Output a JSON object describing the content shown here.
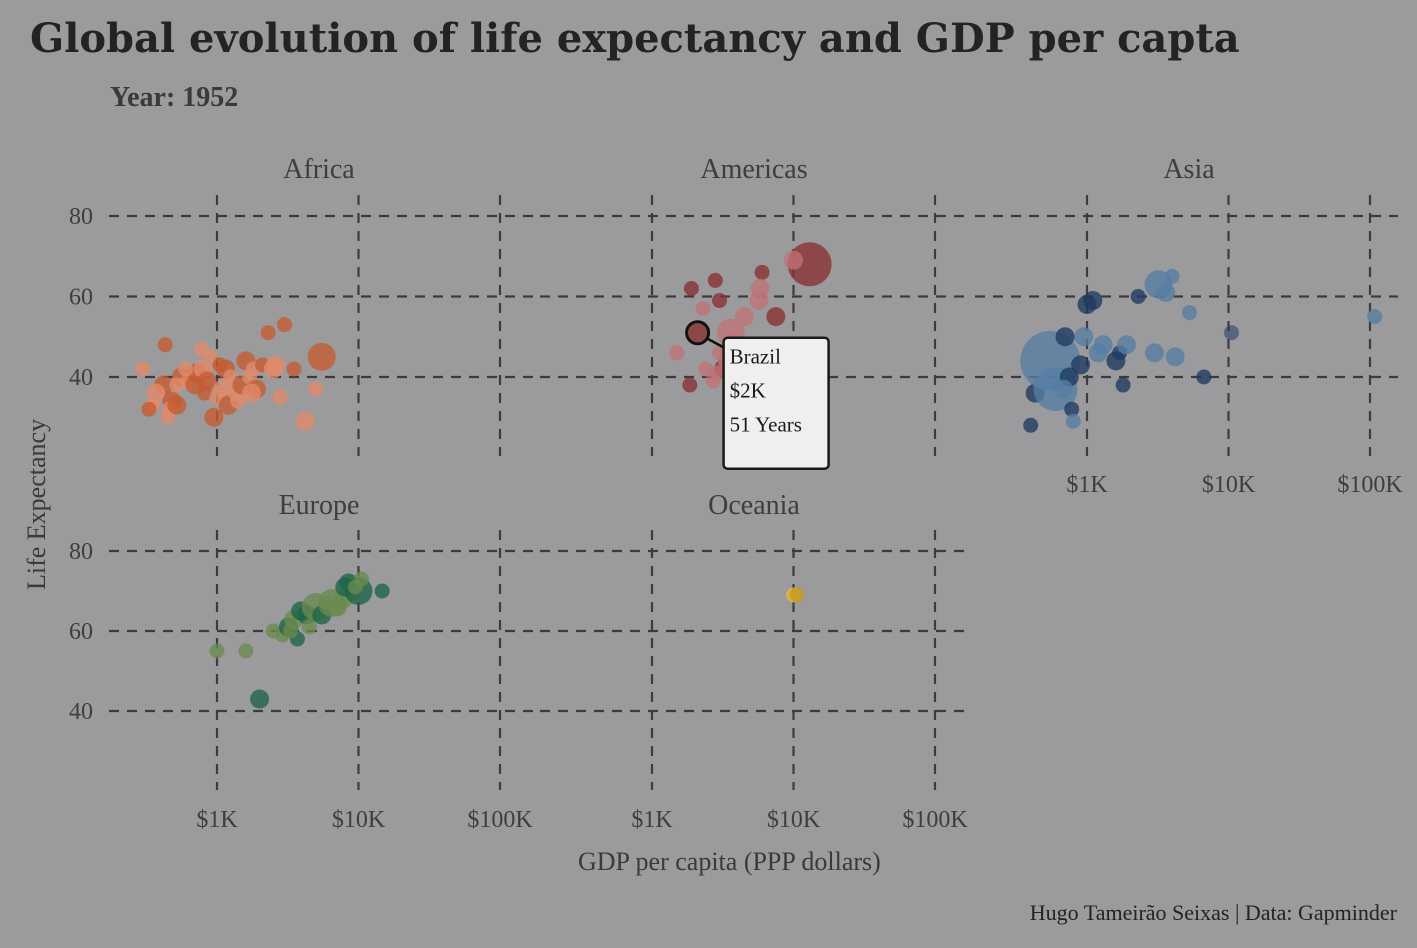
{
  "title": "Global evolution of life expectancy and GDP per capta",
  "subtitle": "Year: 1952",
  "caption": "Hugo Tameirão Seixas | Data: Gapminder",
  "chart_data": {
    "type": "scatter",
    "facet_by": "continent",
    "xlabel": "GDP per capita (PPP dollars)",
    "ylabel": "Life Expectancy",
    "x_scale": "log10",
    "xlim": [
      200,
      130000
    ],
    "ylim": [
      25,
      85
    ],
    "x_ticks": [
      1000,
      10000,
      100000
    ],
    "x_tick_labels": [
      "$1K",
      "$10K",
      "$100K"
    ],
    "y_ticks": [
      40,
      60,
      80
    ],
    "y_tick_labels": [
      "40",
      "60",
      "80"
    ],
    "grid": true,
    "size_encodes": "population",
    "facets": [
      {
        "name": "Africa",
        "colors": [
          "#c75a30",
          "#e08a6a"
        ],
        "points": [
          [
            430,
            48,
            1,
            0
          ],
          [
            300,
            42,
            1,
            1
          ],
          [
            420,
            38,
            2,
            0
          ],
          [
            370,
            36,
            2,
            1
          ],
          [
            350,
            33,
            1,
            1
          ],
          [
            330,
            32,
            1,
            0
          ],
          [
            480,
            34,
            2,
            0
          ],
          [
            460,
            32,
            1,
            1
          ],
          [
            450,
            30,
            1,
            1
          ],
          [
            520,
            33,
            2,
            0
          ],
          [
            560,
            40,
            2,
            0
          ],
          [
            520,
            38,
            1,
            1
          ],
          [
            620,
            39,
            1,
            1
          ],
          [
            700,
            38,
            2,
            0
          ],
          [
            720,
            41,
            2,
            0
          ],
          [
            780,
            47,
            1,
            1
          ],
          [
            800,
            42,
            2,
            1
          ],
          [
            850,
            39,
            2,
            0
          ],
          [
            820,
            36,
            1,
            0
          ],
          [
            900,
            45,
            1,
            1
          ],
          [
            950,
            30,
            2,
            0
          ],
          [
            1000,
            35,
            1,
            1
          ],
          [
            1100,
            37,
            2,
            1
          ],
          [
            1150,
            42,
            2,
            0
          ],
          [
            1250,
            40,
            1,
            1
          ],
          [
            1200,
            33,
            2,
            0
          ],
          [
            1350,
            36,
            1,
            1
          ],
          [
            1500,
            38,
            2,
            0
          ],
          [
            1600,
            44,
            2,
            0
          ],
          [
            1700,
            40,
            1,
            1
          ],
          [
            1800,
            42,
            1,
            1
          ],
          [
            1900,
            37,
            2,
            0
          ],
          [
            2100,
            43,
            1,
            0
          ],
          [
            2300,
            51,
            1,
            0
          ],
          [
            2500,
            42,
            2,
            1
          ],
          [
            2800,
            35,
            1,
            1
          ],
          [
            3000,
            53,
            1,
            0
          ],
          [
            3500,
            42,
            1,
            0
          ],
          [
            4200,
            29,
            2,
            1
          ],
          [
            5000,
            37,
            1,
            1
          ],
          [
            5500,
            45,
            3,
            0
          ],
          [
            600,
            42,
            1,
            1
          ],
          [
            1050,
            43,
            1,
            0
          ],
          [
            1400,
            34,
            1,
            1
          ],
          [
            1750,
            36,
            2,
            1
          ],
          [
            2600,
            43,
            2,
            1
          ]
        ]
      },
      {
        "name": "Americas",
        "colors": [
          "#8a3032",
          "#c07276"
        ],
        "points": [
          [
            2800,
            64,
            1,
            0
          ],
          [
            3000,
            59,
            1,
            0
          ],
          [
            1900,
            62,
            1,
            0
          ],
          [
            6000,
            66,
            1,
            0
          ],
          [
            13000,
            68,
            4,
            0
          ],
          [
            10000,
            69,
            2,
            1
          ],
          [
            5800,
            62,
            2,
            1
          ],
          [
            5700,
            59,
            2,
            1
          ],
          [
            7500,
            55,
            2,
            0
          ],
          [
            2300,
            57,
            1,
            1
          ],
          [
            4500,
            55,
            2,
            1
          ],
          [
            3600,
            51,
            3,
            1
          ],
          [
            2100,
            51,
            2,
            0
          ],
          [
            3000,
            46,
            1,
            1
          ],
          [
            3500,
            46,
            2,
            1
          ],
          [
            1500,
            46,
            1,
            1
          ],
          [
            4000,
            43,
            2,
            1
          ],
          [
            2400,
            42,
            1,
            1
          ],
          [
            3200,
            42,
            2,
            0
          ],
          [
            2900,
            41,
            1,
            1
          ],
          [
            1850,
            38,
            1,
            0
          ],
          [
            2700,
            39,
            1,
            1
          ],
          [
            3300,
            44,
            1,
            1
          ],
          [
            3700,
            49,
            1,
            1
          ]
        ]
      },
      {
        "name": "Asia",
        "colors": [
          "#1e3a60",
          "#567ea4"
        ],
        "points": [
          [
            400,
            28,
            1,
            0
          ],
          [
            430,
            36,
            2,
            0
          ],
          [
            600,
            37,
            4,
            1
          ],
          [
            780,
            32,
            1,
            0
          ],
          [
            800,
            29,
            1,
            1
          ],
          [
            550,
            44,
            6,
            1
          ],
          [
            700,
            50,
            2,
            0
          ],
          [
            750,
            40,
            2,
            0
          ],
          [
            680,
            37,
            2,
            1
          ],
          [
            900,
            43,
            2,
            0
          ],
          [
            950,
            50,
            2,
            1
          ],
          [
            1000,
            58,
            2,
            0
          ],
          [
            1100,
            59,
            2,
            0
          ],
          [
            1200,
            46,
            2,
            1
          ],
          [
            1300,
            48,
            2,
            1
          ],
          [
            1600,
            44,
            2,
            0
          ],
          [
            1700,
            46,
            1,
            0
          ],
          [
            1800,
            38,
            1,
            0
          ],
          [
            1900,
            48,
            2,
            1
          ],
          [
            2300,
            60,
            1,
            0
          ],
          [
            3000,
            46,
            2,
            1
          ],
          [
            3200,
            63,
            3,
            1
          ],
          [
            3600,
            61,
            2,
            1
          ],
          [
            4000,
            65,
            1,
            1
          ],
          [
            4200,
            45,
            2,
            1
          ],
          [
            5300,
            56,
            1,
            1
          ],
          [
            6700,
            40,
            1,
            0
          ],
          [
            10500,
            51,
            1,
            2
          ],
          [
            108000,
            55,
            1,
            1
          ]
        ]
      },
      {
        "name": "Europe",
        "colors": [
          "#1e6448",
          "#6a8a50"
        ],
        "points": [
          [
            1000,
            55,
            1,
            1
          ],
          [
            1600,
            55,
            1,
            1
          ],
          [
            2000,
            43,
            2,
            0
          ],
          [
            2500,
            60,
            1,
            1
          ],
          [
            2900,
            59,
            1,
            1
          ],
          [
            3200,
            61,
            2,
            0
          ],
          [
            3500,
            63,
            2,
            1
          ],
          [
            3700,
            58,
            1,
            0
          ],
          [
            3900,
            65,
            2,
            0
          ],
          [
            4300,
            64,
            2,
            0
          ],
          [
            4500,
            61,
            1,
            1
          ],
          [
            5000,
            66,
            3,
            1
          ],
          [
            5500,
            64,
            2,
            0
          ],
          [
            6000,
            67,
            1,
            1
          ],
          [
            7100,
            66,
            2,
            1
          ],
          [
            7800,
            68,
            2,
            1
          ],
          [
            8500,
            72,
            2,
            0
          ],
          [
            9000,
            70,
            2,
            1
          ],
          [
            10000,
            70,
            3,
            0
          ],
          [
            10500,
            73,
            1,
            1
          ],
          [
            14700,
            70,
            1,
            0
          ],
          [
            6500,
            67,
            3,
            1
          ],
          [
            8000,
            71,
            2,
            0
          ],
          [
            9500,
            71,
            1,
            1
          ],
          [
            3300,
            60,
            1,
            1
          ]
        ]
      },
      {
        "name": "Oceania",
        "colors": [
          "#c69a1e",
          "#e0b93a"
        ],
        "points": [
          [
            10000,
            69,
            1,
            1
          ],
          [
            10600,
            69,
            1,
            0
          ]
        ]
      }
    ],
    "tooltip": {
      "facet": "Americas",
      "country": "Brazil",
      "gdp": 2100,
      "life": 51,
      "lines": [
        "Brazil",
        "$2K",
        "51 Years"
      ]
    }
  }
}
